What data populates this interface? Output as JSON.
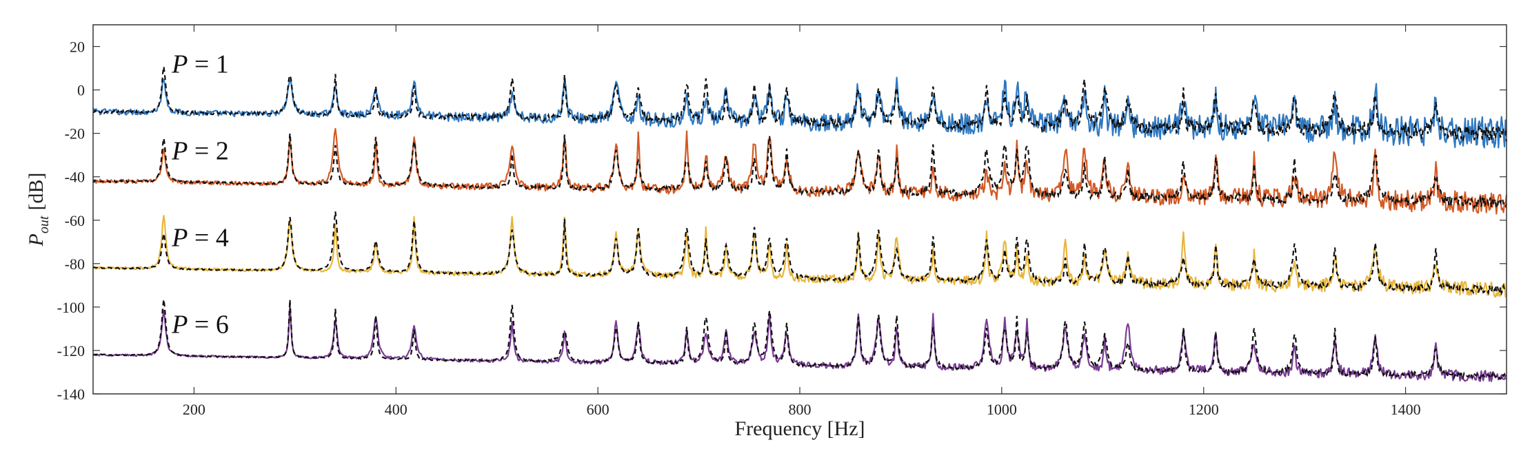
{
  "chart_data": {
    "type": "line",
    "title": "",
    "xlabel": "Frequency [Hz]",
    "ylabel_main": "P",
    "ylabel_sub": "out",
    "ylabel_unit": "[dB]",
    "xlim": [
      100,
      1500
    ],
    "ylim": [
      -140,
      30
    ],
    "grid": false,
    "x_ticks": [
      200,
      400,
      600,
      800,
      1000,
      1200,
      1400
    ],
    "x_tick_labels": [
      "200",
      "400",
      "600",
      "800",
      "1000",
      "1200",
      "1400"
    ],
    "y_ticks": [
      20,
      0,
      -20,
      -40,
      -60,
      -80,
      -100,
      -120,
      -140
    ],
    "y_tick_labels": [
      "20",
      "0",
      "-20",
      "-40",
      "-60",
      "-80",
      "-100",
      "-120",
      "-140"
    ],
    "resonances": [
      170,
      295,
      340,
      380,
      418,
      515,
      567,
      618,
      640,
      688,
      707,
      727,
      755,
      770,
      787,
      858,
      878,
      896,
      932,
      985,
      1003,
      1015,
      1025,
      1063,
      1082,
      1102,
      1125,
      1180,
      1212,
      1250,
      1290,
      1330,
      1370,
      1430
    ],
    "annotations": [
      {
        "text_var": "P",
        "text_eq": " = 1",
        "series": "P = 1"
      },
      {
        "text_var": "P",
        "text_eq": " = 2",
        "series": "P = 2"
      },
      {
        "text_var": "P",
        "text_eq": " = 4",
        "series": "P = 4"
      },
      {
        "text_var": "P",
        "text_eq": " = 6",
        "series": "P = 6"
      }
    ],
    "series": [
      {
        "name": "P = 1",
        "color": "#2f78c0",
        "baseline_start": -10,
        "baseline_end": -20,
        "peak_height": 22,
        "offset_db": 0,
        "noise_db": 9
      },
      {
        "name": "P = 2",
        "color": "#d35a25",
        "baseline_start": -42,
        "baseline_end": -52,
        "peak_height": 26,
        "offset_db": -40,
        "noise_db": 6
      },
      {
        "name": "P = 4",
        "color": "#e8b53a",
        "baseline_start": -82,
        "baseline_end": -92,
        "peak_height": 26,
        "offset_db": -80,
        "noise_db": 4
      },
      {
        "name": "P = 6",
        "color": "#7a3c96",
        "baseline_start": -122,
        "baseline_end": -132,
        "peak_height": 26,
        "offset_db": -120,
        "noise_db": 3
      }
    ],
    "reference_style": {
      "color": "#111111",
      "dash": "black dashed"
    }
  }
}
